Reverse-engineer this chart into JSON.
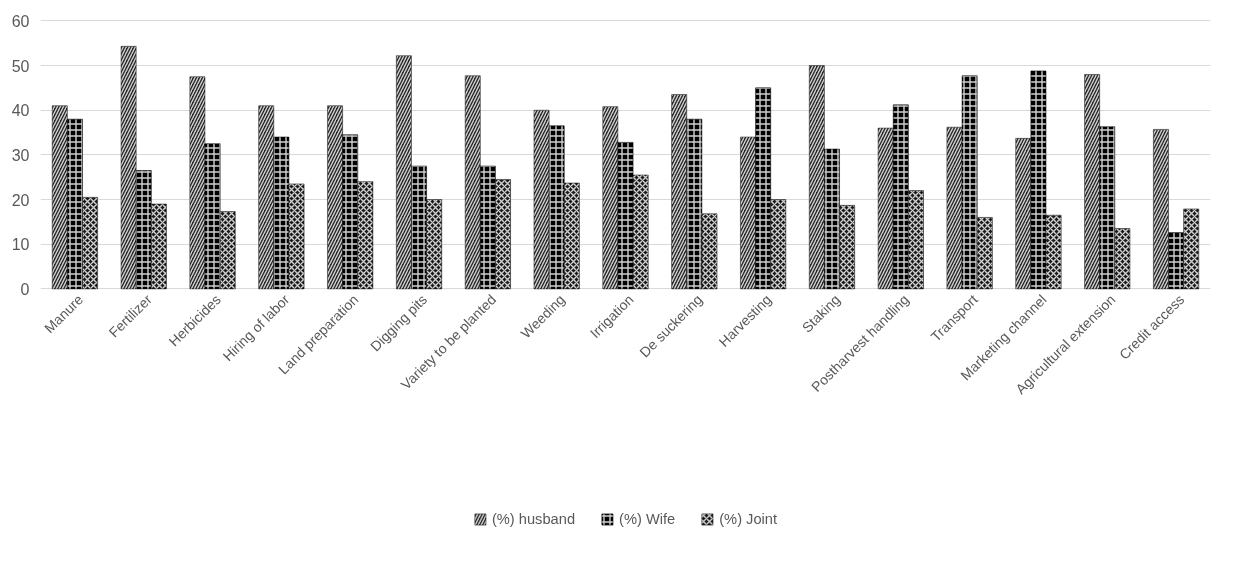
{
  "chart_data": {
    "type": "bar",
    "categories": [
      "Manure",
      "Fertilizer",
      "Herbicides",
      "Hiring of labor",
      "Land preparation",
      "Digging pits",
      "Variety to be planted",
      "Weeding",
      "Irrigation",
      "De suckering",
      "Harvesting",
      "Staking",
      "Postharvest handling",
      "Transport",
      "Marketing channel",
      "Agricultural extension",
      "Credit access"
    ],
    "series": [
      {
        "name": "(%) husband",
        "color": "#262626",
        "values": [
          41,
          54.3,
          47.5,
          41,
          41,
          52.2,
          47.7,
          40,
          40.8,
          43.5,
          34,
          50,
          36,
          36.2,
          33.7,
          48,
          35.7
        ]
      },
      {
        "name": "(%) Wife",
        "color": "#000000",
        "values": [
          38,
          26.5,
          32.5,
          34,
          34.5,
          27.5,
          27.5,
          36.5,
          32.8,
          38,
          45,
          31.3,
          41.2,
          47.7,
          48.8,
          36.3,
          12.6
        ]
      },
      {
        "name": "(%) Joint",
        "color": "#1a1a1a",
        "values": [
          20.5,
          19,
          17.3,
          23.5,
          24,
          20,
          24.5,
          23.7,
          25.5,
          16.8,
          20,
          18.7,
          22,
          16,
          16.5,
          13.5,
          17.9
        ]
      }
    ],
    "ylim": [
      0,
      60
    ],
    "yticks": [
      0,
      10,
      20,
      30,
      40,
      50,
      60
    ],
    "grid": "y",
    "legend": "bottom"
  }
}
